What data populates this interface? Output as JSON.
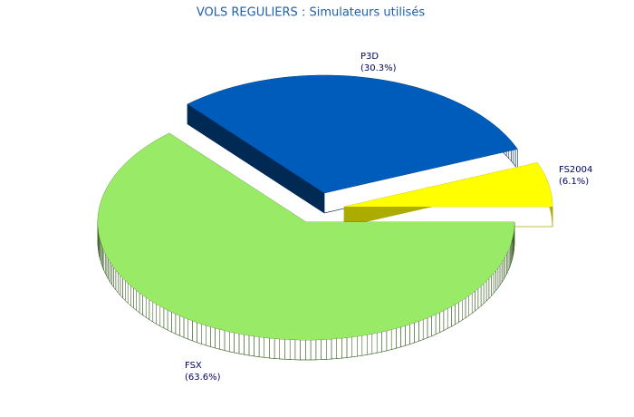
{
  "chart_data": {
    "type": "pie",
    "title": "VOLS REGULIERS : Simulateurs utilisés",
    "categories": [
      "FS2004",
      "P3D",
      "FSX"
    ],
    "values": [
      6.1,
      30.3,
      63.6
    ],
    "value_labels": [
      "(6.1%)",
      "(30.3%)",
      "(63.6%)"
    ],
    "colors": [
      "#ffff00",
      "#005cbb",
      "#99ea66"
    ]
  }
}
